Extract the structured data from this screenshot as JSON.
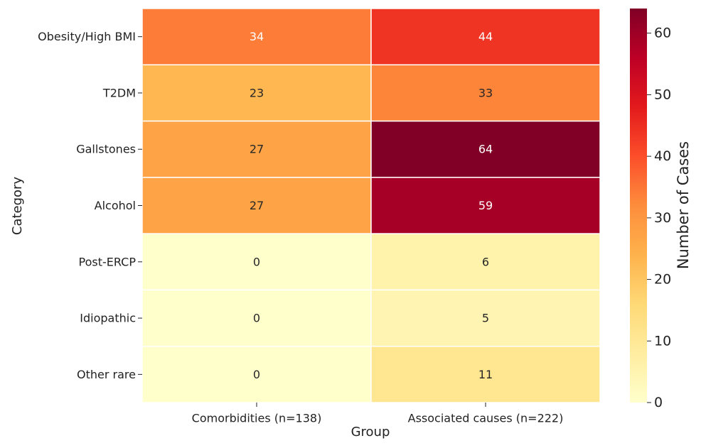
{
  "chart_data": {
    "type": "heatmap",
    "title": "",
    "xlabel": "Group",
    "ylabel": "Category",
    "columns": [
      "Comorbidities (n=138)",
      "Associated causes (n=222)"
    ],
    "rows": [
      "Obesity/High BMI",
      "T2DM",
      "Gallstones",
      "Alcohol",
      "Post-ERCP",
      "Idiopathic",
      "Other rare"
    ],
    "values": [
      [
        34,
        44
      ],
      [
        23,
        33
      ],
      [
        27,
        64
      ],
      [
        27,
        59
      ],
      [
        0,
        6
      ],
      [
        0,
        5
      ],
      [
        0,
        11
      ]
    ],
    "colorbar": {
      "label": "Number of Cases",
      "range": [
        0,
        64
      ],
      "ticks": [
        0,
        10,
        20,
        30,
        40,
        50,
        60
      ],
      "colormap": "YlOrRd"
    }
  }
}
